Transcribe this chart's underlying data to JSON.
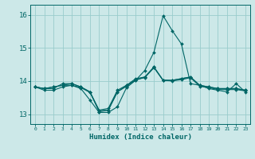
{
  "xlabel": "Humidex (Indice chaleur)",
  "bg_color": "#cce8e8",
  "grid_color": "#99cccc",
  "line_color": "#006666",
  "xlim": [
    -0.5,
    23.5
  ],
  "ylim": [
    12.7,
    16.3
  ],
  "yticks": [
    13,
    14,
    15,
    16
  ],
  "xticks": [
    0,
    1,
    2,
    3,
    4,
    5,
    6,
    7,
    8,
    9,
    10,
    11,
    12,
    13,
    14,
    15,
    16,
    17,
    18,
    19,
    20,
    21,
    22,
    23
  ],
  "series": [
    [
      13.82,
      13.72,
      13.72,
      13.82,
      13.87,
      13.77,
      13.42,
      13.05,
      13.05,
      13.22,
      13.8,
      14.02,
      14.32,
      14.87,
      15.97,
      15.52,
      15.12,
      13.92,
      13.87,
      13.77,
      13.72,
      13.67,
      13.92,
      13.67
    ],
    [
      13.82,
      13.77,
      13.77,
      13.92,
      13.92,
      13.82,
      13.67,
      13.07,
      13.12,
      13.67,
      13.87,
      14.02,
      14.12,
      14.42,
      14.02,
      14.02,
      14.07,
      14.12,
      13.87,
      13.82,
      13.77,
      13.77,
      13.77,
      13.72
    ],
    [
      13.82,
      13.77,
      13.82,
      13.87,
      13.92,
      13.82,
      13.67,
      13.12,
      13.17,
      13.72,
      13.87,
      14.07,
      14.12,
      14.42,
      14.02,
      14.02,
      14.07,
      14.12,
      13.87,
      13.82,
      13.77,
      13.77,
      13.77,
      13.72
    ],
    [
      13.82,
      13.77,
      13.82,
      13.87,
      13.87,
      13.8,
      13.65,
      13.1,
      13.12,
      13.67,
      13.84,
      14.04,
      14.1,
      14.4,
      14.02,
      14.0,
      14.04,
      14.1,
      13.84,
      13.8,
      13.74,
      13.74,
      13.74,
      13.7
    ]
  ]
}
